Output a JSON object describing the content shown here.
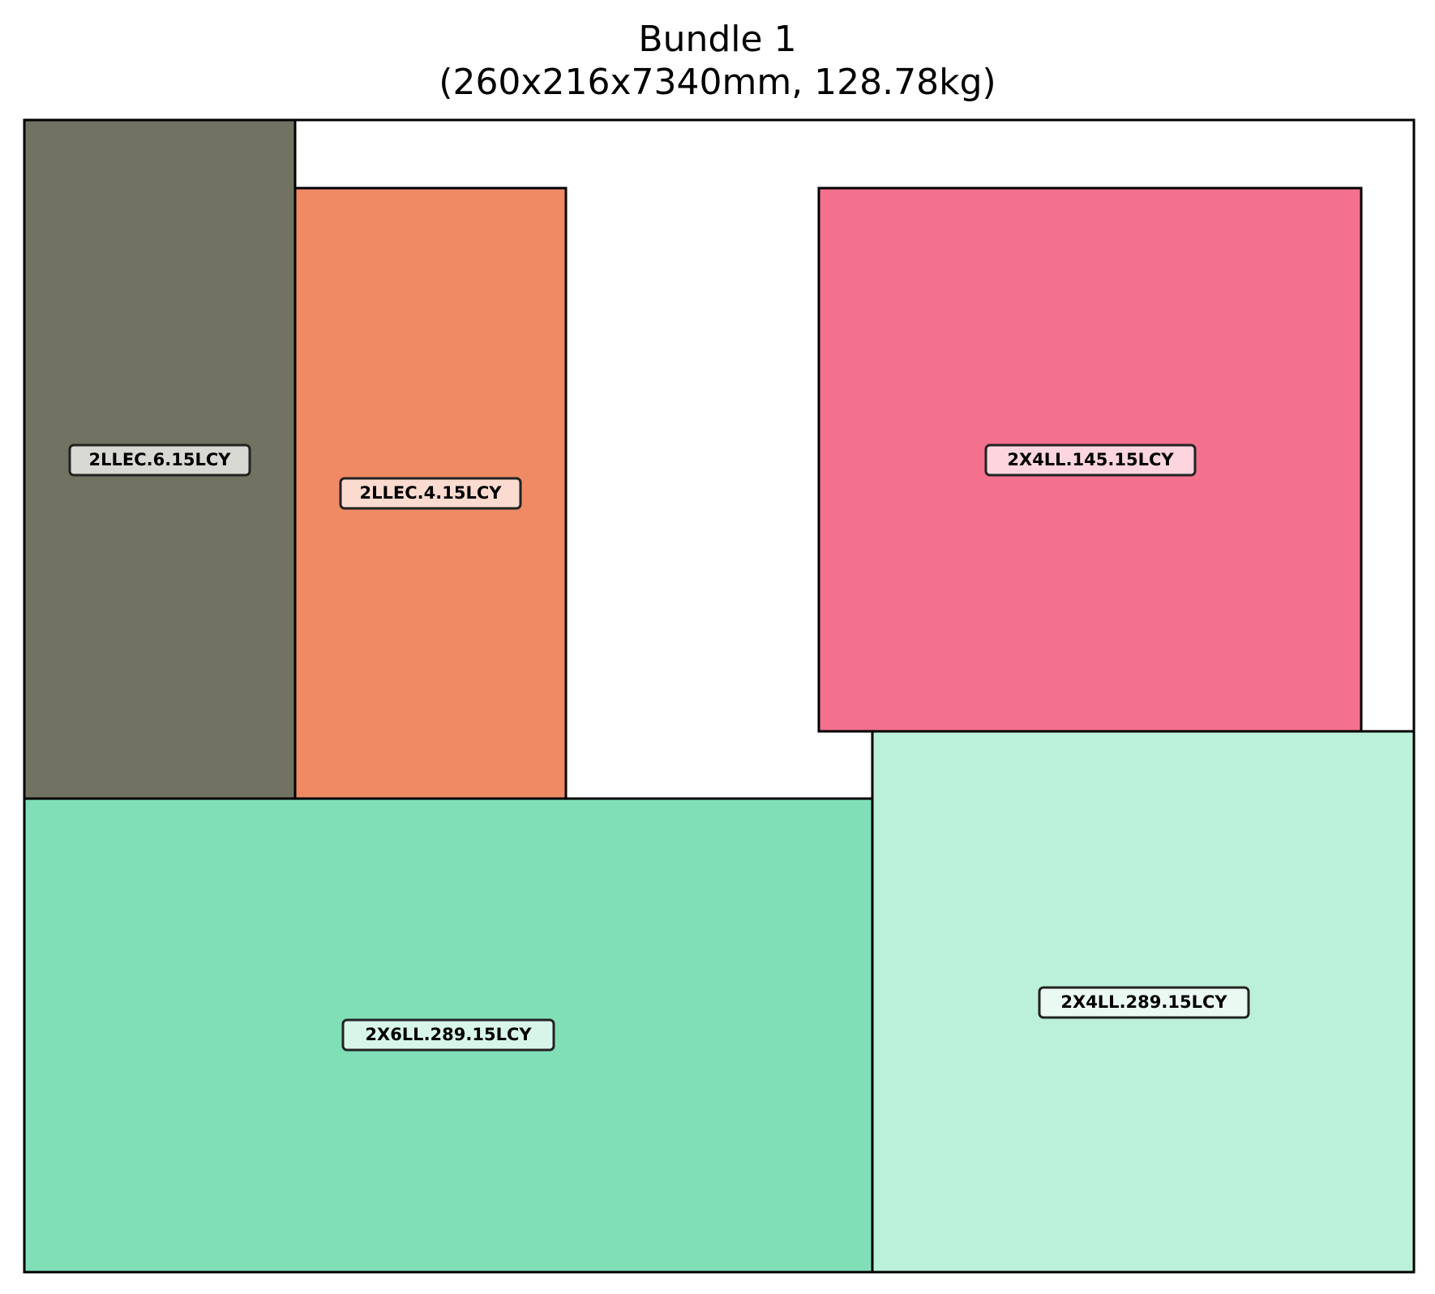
{
  "diagram": {
    "title_line1": "Bundle 1",
    "title_line2": "(260x216x7340mm, 128.78kg)",
    "bundle": {
      "width_mm": 260,
      "height_mm": 216,
      "length_mm": 7340,
      "weight_kg": 128.78
    },
    "pieces": [
      {
        "label": "2LLEC.6.15LCY",
        "color": "#717262",
        "label_bg": "#ebebe8"
      },
      {
        "label": "2LLEC.4.15LCY",
        "color": "#ef8a65",
        "label_bg": "#fde9e2"
      },
      {
        "label": "2X4LL.145.15LCY",
        "color": "#f3708f",
        "label_bg": "#fde6ec"
      },
      {
        "label": "2X6LL.289.15LCY",
        "color": "#81dfb8",
        "label_bg": "#e8f9f1"
      },
      {
        "label": "2X4LL.289.15LCY",
        "color": "#bcf1d9",
        "label_bg": "#f2fcf7"
      }
    ]
  }
}
